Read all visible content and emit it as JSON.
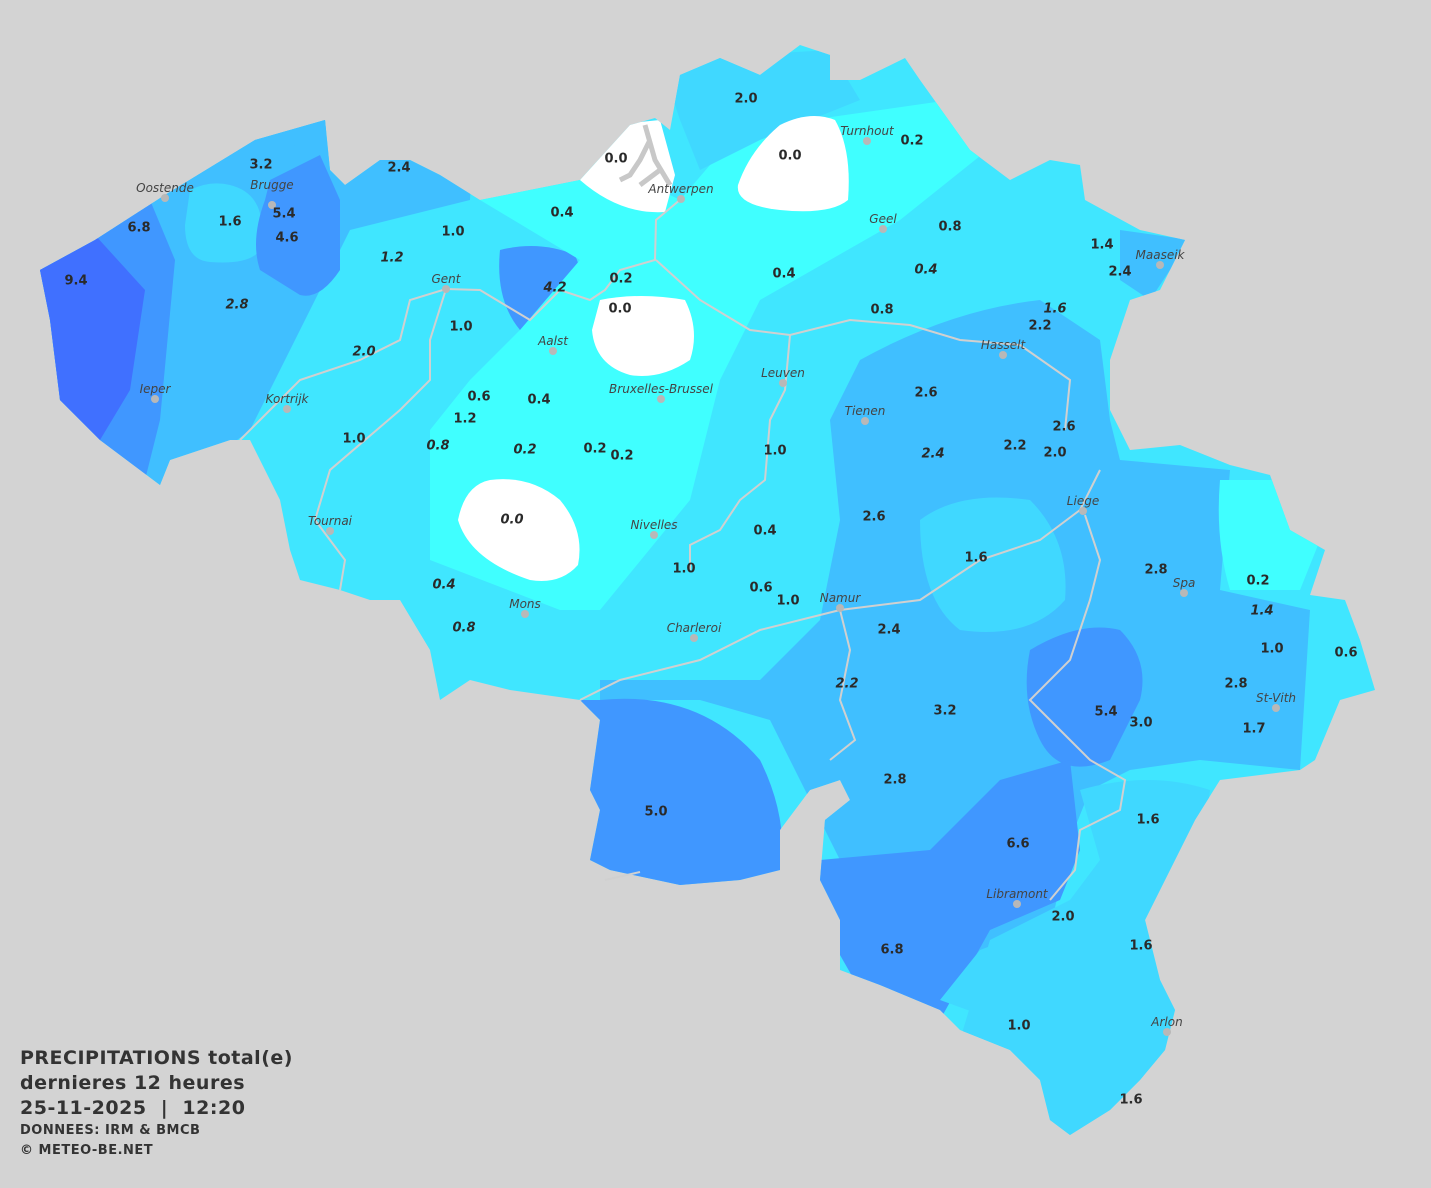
{
  "title": {
    "line1": "PRECIPITATIONS total(e)",
    "line2": "dernieres 12 heures",
    "line3": "25-11-2025  |  12:20",
    "source": "DONNEES: IRM & BMCB",
    "copyright": "© METEO-BE.NET"
  },
  "colors": {
    "background": "#d3d3d3",
    "zero": "#ffffff",
    "very_low": "#40ffff",
    "low": "#40e6ff",
    "low_mid": "#40d8ff",
    "mid": "#40bfff",
    "high": "#4097ff",
    "very_high": "#4070ff",
    "rivers": "#d0d0d0"
  },
  "cities": [
    "Oostende",
    "Brugge",
    "Gent",
    "Antwerpen",
    "Turnhout",
    "Geel",
    "Maaseik",
    "Aalst",
    "Hasselt",
    "Leuven",
    "Bruxelles-Brussel",
    "Ieper",
    "Kortrijk",
    "Tienen",
    "Liege",
    "Tournai",
    "Nivelles",
    "Spa",
    "Mons",
    "Namur",
    "Charleroi",
    "St-Vith",
    "Libramont",
    "Arlon"
  ],
  "values": [
    "2.0",
    "0.0",
    "0.0",
    "0.2",
    "3.2",
    "2.4",
    "5.4",
    "6.8",
    "1.6",
    "4.6",
    "1.0",
    "0.4",
    "9.4",
    "1.2",
    "4.2",
    "0.2",
    "0.0",
    "2.8",
    "0.4",
    "0.8",
    "0.4",
    "1.4",
    "2.4",
    "1.6",
    "0.8",
    "2.2",
    "1.0",
    "2.0",
    "0.6",
    "0.4",
    "1.2",
    "2.6",
    "1.0",
    "0.8",
    "0.2",
    "0.2",
    "0.2",
    "1.0",
    "2.4",
    "2.2",
    "2.0",
    "2.6",
    "0.0",
    "2.6",
    "0.4",
    "1.6",
    "1.0",
    "2.8",
    "0.2",
    "0.4",
    "0.6",
    "1.0",
    "1.4",
    "0.8",
    "2.4",
    "1.0",
    "0.6",
    "2.2",
    "2.8",
    "3.2",
    "5.4",
    "3.0",
    "1.7",
    "2.8",
    "5.0",
    "1.6",
    "6.6",
    "2.0",
    "1.6",
    "6.8",
    "1.0",
    "1.6"
  ]
}
